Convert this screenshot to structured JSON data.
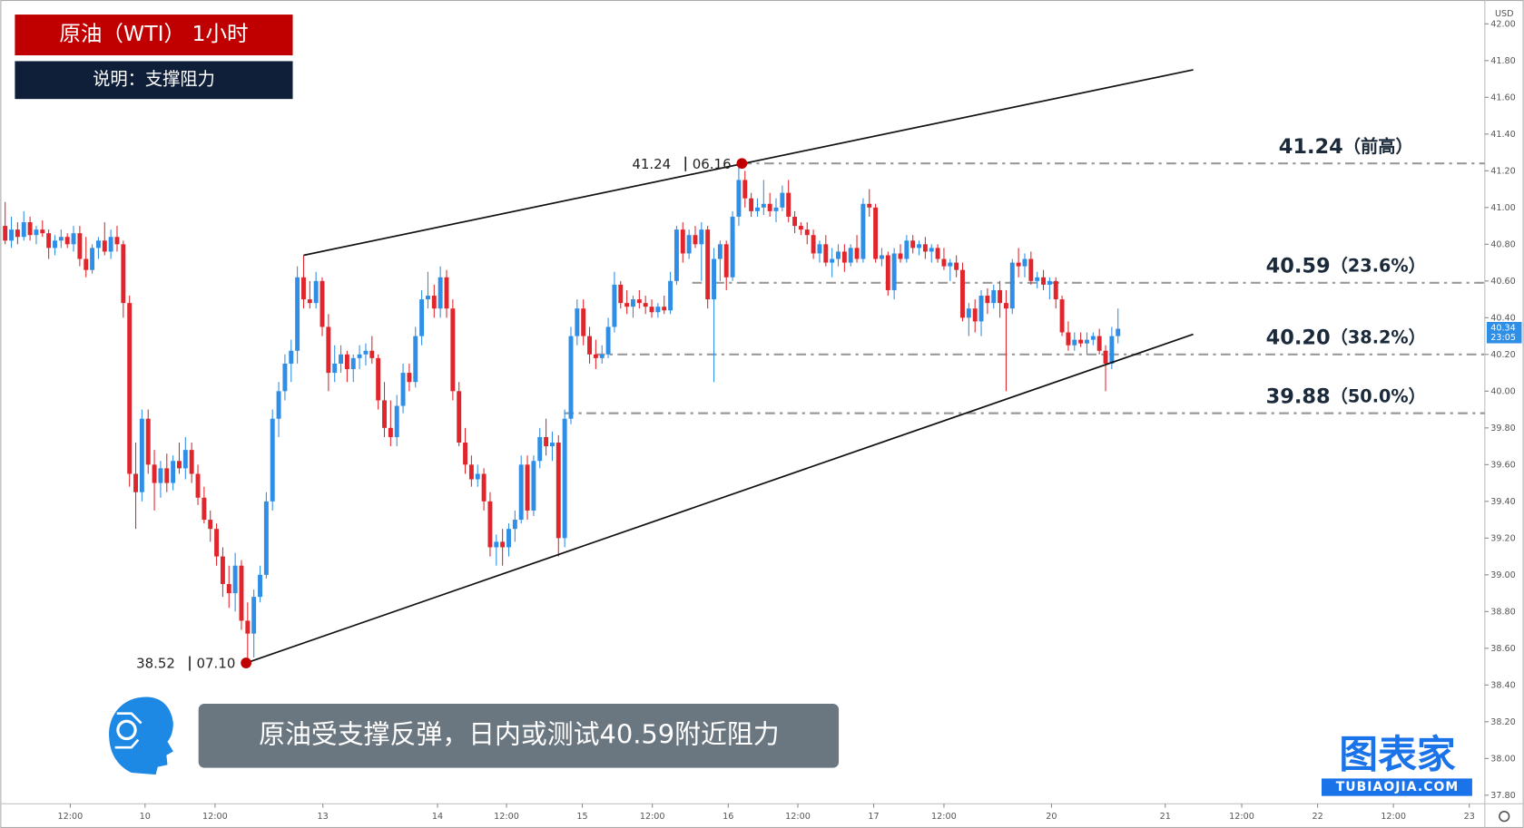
{
  "header": {
    "title": "原油（WTI） 1小时",
    "subtitle": "说明：支撑阻力"
  },
  "chart_data": {
    "type": "candlestick",
    "currency": "USD",
    "xlim": [
      -0.78,
      238
    ],
    "ylim": [
      37.78,
      42.13
    ],
    "xticks": [
      {
        "value": 10.47,
        "label": "12:00"
      },
      {
        "value": 22.5,
        "label": "10"
      },
      {
        "value": 33.76,
        "label": "12:00"
      },
      {
        "value": 51.1,
        "label": "13"
      },
      {
        "value": 69.55,
        "label": "14"
      },
      {
        "value": 80.64,
        "label": "12:00"
      },
      {
        "value": 92.83,
        "label": "15"
      },
      {
        "value": 104.1,
        "label": "12:00"
      },
      {
        "value": 116.3,
        "label": "16"
      },
      {
        "value": 127.5,
        "label": "12:00"
      },
      {
        "value": 139.7,
        "label": "17"
      },
      {
        "value": 151,
        "label": "12:00"
      },
      {
        "value": 168.3,
        "label": "20"
      },
      {
        "value": 186.6,
        "label": "21"
      },
      {
        "value": 198.9,
        "label": "12:00"
      },
      {
        "value": 211.1,
        "label": "22"
      },
      {
        "value": 223.3,
        "label": "12:00"
      },
      {
        "value": 235.5,
        "label": "23"
      }
    ],
    "yticks": [
      {
        "value": 37.8,
        "label": "37.80"
      },
      {
        "value": 38,
        "label": "38.00"
      },
      {
        "value": 38.2,
        "label": "38.20"
      },
      {
        "value": 38.4,
        "label": "38.40"
      },
      {
        "value": 38.6,
        "label": "38.60"
      },
      {
        "value": 38.8,
        "label": "38.80"
      },
      {
        "value": 39,
        "label": "39.00"
      },
      {
        "value": 39.2,
        "label": "39.20"
      },
      {
        "value": 39.4,
        "label": "39.40"
      },
      {
        "value": 39.6,
        "label": "39.60"
      },
      {
        "value": 39.8,
        "label": "39.80"
      },
      {
        "value": 40,
        "label": "40.00"
      },
      {
        "value": 40.2,
        "label": "40.20"
      },
      {
        "value": 40.4,
        "label": "40.40"
      },
      {
        "value": 40.6,
        "label": "40.60"
      },
      {
        "value": 40.8,
        "label": "40.80"
      },
      {
        "value": 41,
        "label": "41.00"
      },
      {
        "value": 41.2,
        "label": "41.20"
      },
      {
        "value": 41.4,
        "label": "41.40"
      },
      {
        "value": 41.6,
        "label": "41.60"
      },
      {
        "value": 41.8,
        "label": "41.80"
      },
      {
        "value": 42,
        "label": "42.00"
      }
    ],
    "up_color": "#2f8ee6",
    "down_color": "#e0262c",
    "candles": [
      [
        40.9,
        41.03,
        40.8,
        40.82
      ],
      [
        40.82,
        40.95,
        40.78,
        40.88
      ],
      [
        40.88,
        40.92,
        40.8,
        40.84
      ],
      [
        40.84,
        40.98,
        40.82,
        40.92
      ],
      [
        40.92,
        40.95,
        40.82,
        40.85
      ],
      [
        40.85,
        40.9,
        40.8,
        40.88
      ],
      [
        40.88,
        40.93,
        40.84,
        40.86
      ],
      [
        40.86,
        40.88,
        40.72,
        40.78
      ],
      [
        40.78,
        40.85,
        40.74,
        40.82
      ],
      [
        40.82,
        40.88,
        40.78,
        40.84
      ],
      [
        40.84,
        40.86,
        40.78,
        40.8
      ],
      [
        40.8,
        40.9,
        40.76,
        40.86
      ],
      [
        40.86,
        40.9,
        40.68,
        40.72
      ],
      [
        40.72,
        40.84,
        40.62,
        40.66
      ],
      [
        40.66,
        40.8,
        40.64,
        40.78
      ],
      [
        40.78,
        40.84,
        40.72,
        40.82
      ],
      [
        40.82,
        40.92,
        40.74,
        40.76
      ],
      [
        40.76,
        40.88,
        40.72,
        40.84
      ],
      [
        40.84,
        40.9,
        40.76,
        40.8
      ],
      [
        40.8,
        40.82,
        40.4,
        40.48
      ],
      [
        40.48,
        40.52,
        39.48,
        39.55
      ],
      [
        39.55,
        39.72,
        39.25,
        39.45
      ],
      [
        39.45,
        39.9,
        39.4,
        39.85
      ],
      [
        39.85,
        39.9,
        39.55,
        39.6
      ],
      [
        39.6,
        39.68,
        39.35,
        39.5
      ],
      [
        39.5,
        39.62,
        39.42,
        39.58
      ],
      [
        39.58,
        39.66,
        39.45,
        39.5
      ],
      [
        39.5,
        39.65,
        39.46,
        39.62
      ],
      [
        39.62,
        39.72,
        39.55,
        39.58
      ],
      [
        39.58,
        39.75,
        39.52,
        39.68
      ],
      [
        39.68,
        39.72,
        39.5,
        39.55
      ],
      [
        39.55,
        39.6,
        39.38,
        39.42
      ],
      [
        39.42,
        39.48,
        39.28,
        39.3
      ],
      [
        39.3,
        39.35,
        39.18,
        39.25
      ],
      [
        39.25,
        39.28,
        39.05,
        39.1
      ],
      [
        39.1,
        39.15,
        38.88,
        38.95
      ],
      [
        38.95,
        39.05,
        38.82,
        38.9
      ],
      [
        38.9,
        39.12,
        38.8,
        39.05
      ],
      [
        39.05,
        39.08,
        38.7,
        38.75
      ],
      [
        38.75,
        38.85,
        38.52,
        38.68
      ],
      [
        38.68,
        38.92,
        38.55,
        38.88
      ],
      [
        38.88,
        39.05,
        38.85,
        39.0
      ],
      [
        39.0,
        39.45,
        38.98,
        39.4
      ],
      [
        39.4,
        39.9,
        39.35,
        39.85
      ],
      [
        39.85,
        40.05,
        39.75,
        40.0
      ],
      [
        40.0,
        40.2,
        39.95,
        40.15
      ],
      [
        40.15,
        40.28,
        40.05,
        40.22
      ],
      [
        40.22,
        40.68,
        40.15,
        40.62
      ],
      [
        40.62,
        40.74,
        40.45,
        40.5
      ],
      [
        40.5,
        40.6,
        40.45,
        40.48
      ],
      [
        40.48,
        40.65,
        40.45,
        40.6
      ],
      [
        40.6,
        40.62,
        40.3,
        40.35
      ],
      [
        40.35,
        40.42,
        40.0,
        40.1
      ],
      [
        40.1,
        40.25,
        40.05,
        40.15
      ],
      [
        40.15,
        40.25,
        40.1,
        40.2
      ],
      [
        40.2,
        40.22,
        40.05,
        40.12
      ],
      [
        40.12,
        40.2,
        40.05,
        40.18
      ],
      [
        40.18,
        40.25,
        40.12,
        40.2
      ],
      [
        40.2,
        40.26,
        40.14,
        40.22
      ],
      [
        40.22,
        40.3,
        40.15,
        40.18
      ],
      [
        40.18,
        40.2,
        39.9,
        39.95
      ],
      [
        39.95,
        40.05,
        39.75,
        39.8
      ],
      [
        39.8,
        39.95,
        39.7,
        39.75
      ],
      [
        39.75,
        39.98,
        39.7,
        39.92
      ],
      [
        39.92,
        40.15,
        39.88,
        40.1
      ],
      [
        40.1,
        40.15,
        40.0,
        40.05
      ],
      [
        40.05,
        40.35,
        40.02,
        40.3
      ],
      [
        40.3,
        40.55,
        40.25,
        40.5
      ],
      [
        40.5,
        40.65,
        40.45,
        40.52
      ],
      [
        40.52,
        40.58,
        40.4,
        40.45
      ],
      [
        40.45,
        40.68,
        40.4,
        40.62
      ],
      [
        40.62,
        40.66,
        40.4,
        40.45
      ],
      [
        40.45,
        40.5,
        39.95,
        40.0
      ],
      [
        40.0,
        40.05,
        39.7,
        39.72
      ],
      [
        39.72,
        39.8,
        39.55,
        39.6
      ],
      [
        39.6,
        39.65,
        39.48,
        39.52
      ],
      [
        39.52,
        39.6,
        39.48,
        39.55
      ],
      [
        39.55,
        39.58,
        39.35,
        39.4
      ],
      [
        39.4,
        39.45,
        39.1,
        39.15
      ],
      [
        39.15,
        39.22,
        39.05,
        39.18
      ],
      [
        39.18,
        39.25,
        39.05,
        39.15
      ],
      [
        39.15,
        39.28,
        39.1,
        39.25
      ],
      [
        39.25,
        39.35,
        39.18,
        39.3
      ],
      [
        39.3,
        39.65,
        39.28,
        39.6
      ],
      [
        39.6,
        39.65,
        39.3,
        39.35
      ],
      [
        39.35,
        39.65,
        39.32,
        39.62
      ],
      [
        39.62,
        39.8,
        39.58,
        39.75
      ],
      [
        39.75,
        39.85,
        39.65,
        39.7
      ],
      [
        39.7,
        39.78,
        39.62,
        39.72
      ],
      [
        39.72,
        39.76,
        39.1,
        39.2
      ],
      [
        39.2,
        39.9,
        39.15,
        39.85
      ],
      [
        39.85,
        40.35,
        39.82,
        40.3
      ],
      [
        40.3,
        40.5,
        40.25,
        40.45
      ],
      [
        40.45,
        40.5,
        40.25,
        40.3
      ],
      [
        40.3,
        40.35,
        40.15,
        40.2
      ],
      [
        40.2,
        40.28,
        40.12,
        40.18
      ],
      [
        40.18,
        40.25,
        40.15,
        40.2
      ],
      [
        40.2,
        40.4,
        40.18,
        40.35
      ],
      [
        40.35,
        40.65,
        40.32,
        40.58
      ],
      [
        40.58,
        40.6,
        40.45,
        40.48
      ],
      [
        40.48,
        40.55,
        40.42,
        40.46
      ],
      [
        40.46,
        40.52,
        40.4,
        40.5
      ],
      [
        40.5,
        40.55,
        40.45,
        40.48
      ],
      [
        40.48,
        40.52,
        40.42,
        40.46
      ],
      [
        40.46,
        40.5,
        40.4,
        40.43
      ],
      [
        40.43,
        40.48,
        40.4,
        40.46
      ],
      [
        40.46,
        40.52,
        40.42,
        40.44
      ],
      [
        40.44,
        40.65,
        40.42,
        40.6
      ],
      [
        40.6,
        40.9,
        40.58,
        40.88
      ],
      [
        40.88,
        40.92,
        40.7,
        40.75
      ],
      [
        40.75,
        40.88,
        40.72,
        40.85
      ],
      [
        40.85,
        40.9,
        40.78,
        40.8
      ],
      [
        40.8,
        40.92,
        40.6,
        40.88
      ],
      [
        40.88,
        40.9,
        40.45,
        40.5
      ],
      [
        40.5,
        40.78,
        40.05,
        40.72
      ],
      [
        40.72,
        40.82,
        40.6,
        40.8
      ],
      [
        40.8,
        40.82,
        40.55,
        40.62
      ],
      [
        40.62,
        40.98,
        40.6,
        40.95
      ],
      [
        40.95,
        41.24,
        40.9,
        41.15
      ],
      [
        41.15,
        41.2,
        41.0,
        41.05
      ],
      [
        41.05,
        41.08,
        40.95,
        40.98
      ],
      [
        40.98,
        41.05,
        40.95,
        41.0
      ],
      [
        41.0,
        41.15,
        40.96,
        41.02
      ],
      [
        41.02,
        41.08,
        40.95,
        40.98
      ],
      [
        40.98,
        41.05,
        40.92,
        41.0
      ],
      [
        41.0,
        41.12,
        40.98,
        41.08
      ],
      [
        41.08,
        41.15,
        40.92,
        40.95
      ],
      [
        40.95,
        40.98,
        40.86,
        40.9
      ],
      [
        40.9,
        40.92,
        40.85,
        40.88
      ],
      [
        40.88,
        40.92,
        40.8,
        40.85
      ],
      [
        40.85,
        40.88,
        40.72,
        40.75
      ],
      [
        40.75,
        40.82,
        40.7,
        40.8
      ],
      [
        40.8,
        40.85,
        40.68,
        40.7
      ],
      [
        40.7,
        40.78,
        40.62,
        40.72
      ],
      [
        40.72,
        40.8,
        40.68,
        40.76
      ],
      [
        40.76,
        40.8,
        40.65,
        40.7
      ],
      [
        40.7,
        40.8,
        40.68,
        40.78
      ],
      [
        40.78,
        40.85,
        40.7,
        40.72
      ],
      [
        40.72,
        41.05,
        40.7,
        41.02
      ],
      [
        41.02,
        41.1,
        40.95,
        41.0
      ],
      [
        41.0,
        41.02,
        40.7,
        40.72
      ],
      [
        40.72,
        40.78,
        40.68,
        40.74
      ],
      [
        40.74,
        40.76,
        40.52,
        40.55
      ],
      [
        40.55,
        40.78,
        40.5,
        40.75
      ],
      [
        40.75,
        40.8,
        40.7,
        40.72
      ],
      [
        40.72,
        40.85,
        40.7,
        40.82
      ],
      [
        40.82,
        40.85,
        40.75,
        40.78
      ],
      [
        40.78,
        40.82,
        40.74,
        40.8
      ],
      [
        40.8,
        40.84,
        40.72,
        40.76
      ],
      [
        40.76,
        40.8,
        40.7,
        40.78
      ],
      [
        40.78,
        40.8,
        40.7,
        40.72
      ],
      [
        40.72,
        40.78,
        40.66,
        40.68
      ],
      [
        40.68,
        40.72,
        40.6,
        40.7
      ],
      [
        40.7,
        40.74,
        40.62,
        40.66
      ],
      [
        40.66,
        40.7,
        40.38,
        40.4
      ],
      [
        40.4,
        40.48,
        40.3,
        40.45
      ],
      [
        40.45,
        40.5,
        40.32,
        40.38
      ],
      [
        40.38,
        40.55,
        40.3,
        40.52
      ],
      [
        40.52,
        40.56,
        40.42,
        40.48
      ],
      [
        40.48,
        40.58,
        40.45,
        40.55
      ],
      [
        40.55,
        40.6,
        40.4,
        40.48
      ],
      [
        40.48,
        40.55,
        40.0,
        40.45
      ],
      [
        40.45,
        40.72,
        40.42,
        40.7
      ],
      [
        40.7,
        40.78,
        40.62,
        40.68
      ],
      [
        40.68,
        40.75,
        40.62,
        40.72
      ],
      [
        40.72,
        40.76,
        40.58,
        40.6
      ],
      [
        40.6,
        40.65,
        40.56,
        40.62
      ],
      [
        40.62,
        40.66,
        40.55,
        40.58
      ],
      [
        40.58,
        40.62,
        40.5,
        40.6
      ],
      [
        40.6,
        40.62,
        40.45,
        40.5
      ],
      [
        40.5,
        40.52,
        40.3,
        40.32
      ],
      [
        40.32,
        40.38,
        40.22,
        40.25
      ],
      [
        40.25,
        40.32,
        40.22,
        40.28
      ],
      [
        40.28,
        40.32,
        40.24,
        40.26
      ],
      [
        40.26,
        40.32,
        40.2,
        40.28
      ],
      [
        40.28,
        40.32,
        40.25,
        40.3
      ],
      [
        40.3,
        40.34,
        40.2,
        40.22
      ],
      [
        40.22,
        40.25,
        40.0,
        40.15
      ],
      [
        40.15,
        40.35,
        40.12,
        40.3
      ],
      [
        40.3,
        40.45,
        40.26,
        40.34
      ]
    ],
    "last_price": {
      "value": 40.34,
      "countdown": "23:05"
    },
    "trendlines": [
      {
        "x": [
          48,
          191.1
        ],
        "y": [
          40.74,
          41.75
        ]
      },
      {
        "x": [
          38.75,
          191.1
        ],
        "y": [
          38.52,
          40.31
        ]
      }
    ],
    "levels": [
      {
        "value": 41.24,
        "x": 118.5,
        "label": "41.24",
        "tag": "（前高）"
      },
      {
        "value": 40.59,
        "x": 110.5,
        "label": "40.59",
        "tag": "（23.6%）"
      },
      {
        "value": 40.2,
        "x": 94.9,
        "label": "40.20",
        "tag": "（38.2%）"
      },
      {
        "value": 39.88,
        "x": 89.9,
        "label": "39.88",
        "tag": "（50.0%）"
      }
    ],
    "pivots": [
      {
        "x": 118.5,
        "y": 41.24,
        "date": "06.16"
      },
      {
        "x": 38.75,
        "y": 38.52,
        "date": "07.10"
      }
    ]
  },
  "banner": "原油受支撑反弹，日内或测试40.59附近阻力",
  "logo": {
    "name": "图表家",
    "url": "TUBIAOJIA.COM"
  }
}
